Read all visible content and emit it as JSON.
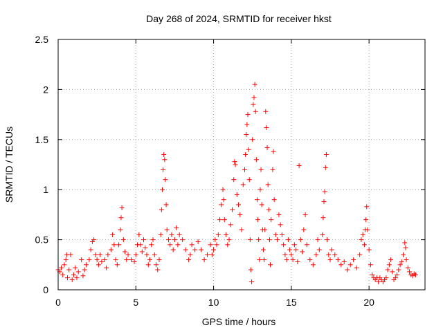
{
  "chart_data": {
    "type": "scatter",
    "title": "Day 268 of 2024, SRMTID for receiver hkst",
    "xlabel": "GPS time / hours",
    "ylabel": "SRMTID / TECUs",
    "xlim": [
      0,
      23.6
    ],
    "ylim": [
      0,
      2.5
    ],
    "xticks": [
      0,
      5,
      10,
      15,
      20
    ],
    "yticks": [
      0,
      0.5,
      1,
      1.5,
      2,
      2.5
    ],
    "xtick_labels": [
      "0",
      "5",
      "10",
      "15",
      "20"
    ],
    "ytick_labels": [
      "0",
      "0.5",
      "1",
      "1.5",
      "2",
      "2.5"
    ],
    "grid": true,
    "marker": "+",
    "color": "#ff0000",
    "series": [
      {
        "name": "SRMTID",
        "points": [
          [
            0.0,
            0.2
          ],
          [
            0.1,
            0.18
          ],
          [
            0.2,
            0.22
          ],
          [
            0.3,
            0.15
          ],
          [
            0.4,
            0.25
          ],
          [
            0.5,
            0.3
          ],
          [
            0.55,
            0.35
          ],
          [
            0.6,
            0.12
          ],
          [
            0.7,
            0.2
          ],
          [
            0.8,
            0.35
          ],
          [
            0.9,
            0.1
          ],
          [
            1.0,
            0.15
          ],
          [
            1.1,
            0.22
          ],
          [
            1.2,
            0.12
          ],
          [
            1.3,
            0.18
          ],
          [
            1.5,
            0.3
          ],
          [
            1.6,
            0.14
          ],
          [
            1.7,
            0.2
          ],
          [
            1.8,
            0.25
          ],
          [
            2.0,
            0.3
          ],
          [
            2.1,
            0.4
          ],
          [
            2.2,
            0.48
          ],
          [
            2.3,
            0.5
          ],
          [
            2.4,
            0.35
          ],
          [
            2.5,
            0.3
          ],
          [
            2.6,
            0.25
          ],
          [
            2.7,
            0.35
          ],
          [
            2.8,
            0.28
          ],
          [
            3.0,
            0.3
          ],
          [
            3.1,
            0.22
          ],
          [
            3.2,
            0.35
          ],
          [
            3.4,
            0.4
          ],
          [
            3.5,
            0.55
          ],
          [
            3.6,
            0.45
          ],
          [
            3.7,
            0.3
          ],
          [
            3.8,
            0.25
          ],
          [
            3.9,
            0.45
          ],
          [
            4.0,
            0.6
          ],
          [
            4.05,
            0.72
          ],
          [
            4.1,
            0.82
          ],
          [
            4.2,
            0.5
          ],
          [
            4.3,
            0.38
          ],
          [
            4.4,
            0.3
          ],
          [
            4.5,
            0.35
          ],
          [
            4.7,
            0.3
          ],
          [
            4.9,
            0.28
          ],
          [
            5.0,
            0.35
          ],
          [
            5.1,
            0.45
          ],
          [
            5.2,
            0.55
          ],
          [
            5.3,
            0.45
          ],
          [
            5.4,
            0.38
          ],
          [
            5.5,
            0.5
          ],
          [
            5.6,
            0.42
          ],
          [
            5.7,
            0.35
          ],
          [
            5.8,
            0.25
          ],
          [
            5.9,
            0.3
          ],
          [
            6.0,
            0.45
          ],
          [
            6.1,
            0.5
          ],
          [
            6.2,
            0.35
          ],
          [
            6.3,
            0.25
          ],
          [
            6.4,
            0.2
          ],
          [
            6.5,
            0.3
          ],
          [
            6.6,
            0.55
          ],
          [
            6.65,
            0.8
          ],
          [
            6.7,
            1.0
          ],
          [
            6.75,
            1.2
          ],
          [
            6.8,
            1.35
          ],
          [
            6.85,
            1.3
          ],
          [
            6.9,
            1.1
          ],
          [
            6.95,
            0.85
          ],
          [
            7.0,
            0.6
          ],
          [
            7.1,
            0.5
          ],
          [
            7.2,
            0.45
          ],
          [
            7.3,
            0.55
          ],
          [
            7.4,
            0.4
          ],
          [
            7.5,
            0.5
          ],
          [
            7.6,
            0.62
          ],
          [
            7.7,
            0.45
          ],
          [
            7.8,
            0.55
          ],
          [
            8.0,
            0.5
          ],
          [
            8.2,
            0.4
          ],
          [
            8.4,
            0.3
          ],
          [
            8.5,
            0.35
          ],
          [
            8.6,
            0.45
          ],
          [
            8.8,
            0.4
          ],
          [
            9.0,
            0.48
          ],
          [
            9.2,
            0.4
          ],
          [
            9.4,
            0.3
          ],
          [
            9.6,
            0.35
          ],
          [
            9.8,
            0.45
          ],
          [
            9.9,
            0.35
          ],
          [
            10.0,
            0.4
          ],
          [
            10.1,
            0.5
          ],
          [
            10.2,
            0.45
          ],
          [
            10.3,
            0.55
          ],
          [
            10.4,
            0.7
          ],
          [
            10.5,
            0.85
          ],
          [
            10.6,
            1.0
          ],
          [
            10.65,
            0.9
          ],
          [
            10.7,
            0.7
          ],
          [
            10.8,
            0.55
          ],
          [
            10.9,
            0.45
          ],
          [
            11.0,
            0.5
          ],
          [
            11.1,
            0.65
          ],
          [
            11.2,
            0.8
          ],
          [
            11.3,
            1.1
          ],
          [
            11.35,
            1.28
          ],
          [
            11.4,
            1.25
          ],
          [
            11.5,
            0.95
          ],
          [
            11.6,
            0.85
          ],
          [
            11.7,
            0.75
          ],
          [
            11.8,
            0.6
          ],
          [
            11.9,
            1.05
          ],
          [
            12.0,
            1.2
          ],
          [
            12.05,
            1.35
          ],
          [
            12.1,
            1.55
          ],
          [
            12.15,
            1.65
          ],
          [
            12.2,
            1.75
          ],
          [
            12.25,
            1.4
          ],
          [
            12.3,
            1.1
          ],
          [
            12.35,
            0.5
          ],
          [
            12.4,
            0.2
          ],
          [
            12.45,
            0.08
          ],
          [
            12.5,
            1.5
          ],
          [
            12.55,
            1.85
          ],
          [
            12.6,
            1.92
          ],
          [
            12.65,
            2.05
          ],
          [
            12.7,
            1.78
          ],
          [
            12.75,
            1.3
          ],
          [
            12.8,
            0.9
          ],
          [
            12.85,
            0.7
          ],
          [
            12.9,
            0.5
          ],
          [
            12.95,
            0.3
          ],
          [
            13.0,
            1.0
          ],
          [
            13.05,
            1.2
          ],
          [
            13.1,
            0.85
          ],
          [
            13.15,
            0.6
          ],
          [
            13.2,
            0.4
          ],
          [
            13.25,
            0.3
          ],
          [
            13.3,
            0.6
          ],
          [
            13.35,
            1.78
          ],
          [
            13.4,
            1.62
          ],
          [
            13.45,
            1.42
          ],
          [
            13.5,
            1.05
          ],
          [
            13.55,
            0.8
          ],
          [
            13.6,
            0.5
          ],
          [
            13.65,
            0.25
          ],
          [
            13.7,
            0.7
          ],
          [
            13.8,
            1.2
          ],
          [
            13.85,
            1.38
          ],
          [
            13.9,
            0.9
          ],
          [
            14.0,
            0.55
          ],
          [
            14.1,
            0.5
          ],
          [
            14.2,
            0.75
          ],
          [
            14.3,
            0.65
          ],
          [
            14.4,
            0.55
          ],
          [
            14.5,
            0.45
          ],
          [
            14.6,
            0.35
          ],
          [
            14.7,
            0.3
          ],
          [
            14.8,
            0.5
          ],
          [
            14.9,
            0.4
          ],
          [
            15.0,
            0.35
          ],
          [
            15.1,
            0.3
          ],
          [
            15.2,
            0.45
          ],
          [
            15.3,
            0.4
          ],
          [
            15.4,
            0.28
          ],
          [
            15.5,
            1.24
          ],
          [
            15.6,
            0.5
          ],
          [
            15.7,
            0.38
          ],
          [
            15.8,
            0.6
          ],
          [
            15.9,
            0.75
          ],
          [
            16.0,
            0.45
          ],
          [
            16.2,
            0.3
          ],
          [
            16.4,
            0.25
          ],
          [
            16.6,
            0.35
          ],
          [
            16.7,
            0.5
          ],
          [
            16.8,
            0.4
          ],
          [
            17.0,
            0.55
          ],
          [
            17.05,
            0.72
          ],
          [
            17.1,
            0.88
          ],
          [
            17.15,
            0.98
          ],
          [
            17.2,
            1.22
          ],
          [
            17.25,
            1.35
          ],
          [
            17.3,
            0.5
          ],
          [
            17.4,
            0.35
          ],
          [
            17.5,
            0.3
          ],
          [
            17.6,
            0.4
          ],
          [
            17.8,
            0.35
          ],
          [
            18.0,
            0.3
          ],
          [
            18.2,
            0.25
          ],
          [
            18.4,
            0.28
          ],
          [
            18.6,
            0.2
          ],
          [
            18.8,
            0.25
          ],
          [
            19.0,
            0.3
          ],
          [
            19.2,
            0.22
          ],
          [
            19.4,
            0.35
          ],
          [
            19.5,
            0.5
          ],
          [
            19.6,
            0.55
          ],
          [
            19.7,
            0.45
          ],
          [
            19.75,
            0.6
          ],
          [
            19.8,
            0.7
          ],
          [
            19.85,
            0.83
          ],
          [
            19.9,
            0.6
          ],
          [
            20.0,
            0.4
          ],
          [
            20.1,
            0.25
          ],
          [
            20.2,
            0.15
          ],
          [
            20.3,
            0.12
          ],
          [
            20.4,
            0.1
          ],
          [
            20.5,
            0.12
          ],
          [
            20.6,
            0.08
          ],
          [
            20.7,
            0.12
          ],
          [
            20.8,
            0.1
          ],
          [
            20.9,
            0.08
          ],
          [
            21.0,
            0.1
          ],
          [
            21.1,
            0.12
          ],
          [
            21.2,
            0.2
          ],
          [
            21.3,
            0.25
          ],
          [
            21.4,
            0.3
          ],
          [
            21.5,
            0.18
          ],
          [
            21.6,
            0.1
          ],
          [
            21.7,
            0.12
          ],
          [
            21.8,
            0.15
          ],
          [
            21.9,
            0.2
          ],
          [
            22.0,
            0.25
          ],
          [
            22.1,
            0.28
          ],
          [
            22.2,
            0.35
          ],
          [
            22.3,
            0.47
          ],
          [
            22.35,
            0.42
          ],
          [
            22.4,
            0.3
          ],
          [
            22.5,
            0.22
          ],
          [
            22.6,
            0.18
          ],
          [
            22.7,
            0.15
          ],
          [
            22.8,
            0.14
          ],
          [
            22.9,
            0.16
          ],
          [
            23.0,
            0.15
          ]
        ]
      }
    ]
  }
}
